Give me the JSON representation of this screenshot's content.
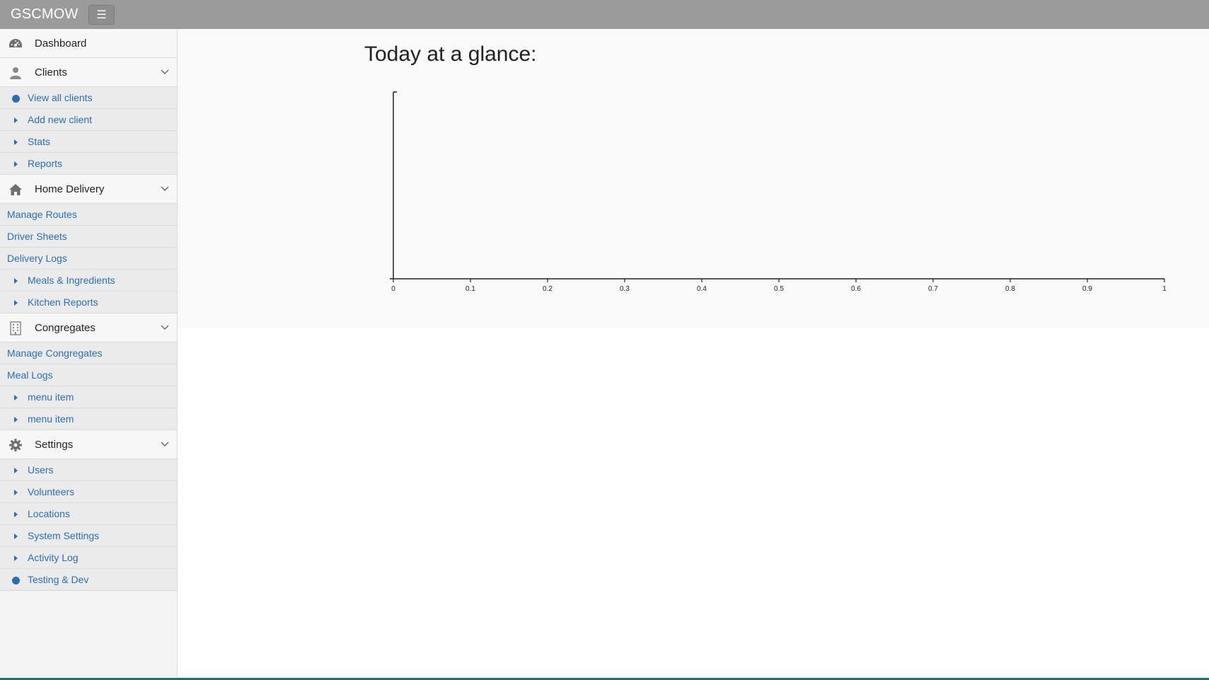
{
  "app": {
    "brand": "GSCMOW",
    "menu_toggle_icon": "hamburger-icon"
  },
  "sidebar": {
    "dashboard": {
      "label": "Dashboard",
      "icon": "dashboard-icon"
    },
    "clients": {
      "label": "Clients",
      "icon": "user-icon",
      "items": [
        {
          "label": "View all clients",
          "marker": "dot"
        },
        {
          "label": "Add new client",
          "marker": "triangle"
        },
        {
          "label": "Stats",
          "marker": "triangle"
        },
        {
          "label": "Reports",
          "marker": "triangle"
        }
      ]
    },
    "home_delivery": {
      "label": "Home Delivery",
      "icon": "home-icon",
      "items": [
        {
          "label": "Manage Routes",
          "marker": "none"
        },
        {
          "label": "Driver Sheets",
          "marker": "none"
        },
        {
          "label": "Delivery Logs",
          "marker": "none"
        },
        {
          "label": "Meals & Ingredients",
          "marker": "triangle"
        },
        {
          "label": "Kitchen Reports",
          "marker": "triangle"
        }
      ]
    },
    "congregates": {
      "label": "Congregates",
      "icon": "building-icon",
      "items": [
        {
          "label": "Manage Congregates",
          "marker": "none"
        },
        {
          "label": "Meal Logs",
          "marker": "none"
        },
        {
          "label": "menu item",
          "marker": "triangle"
        },
        {
          "label": "menu item",
          "marker": "triangle"
        }
      ]
    },
    "settings": {
      "label": "Settings",
      "icon": "gear-icon",
      "items": [
        {
          "label": "Users",
          "marker": "triangle"
        },
        {
          "label": "Volunteers",
          "marker": "triangle"
        },
        {
          "label": "Locations",
          "marker": "triangle"
        },
        {
          "label": "System Settings",
          "marker": "triangle"
        },
        {
          "label": "Activity Log",
          "marker": "triangle"
        },
        {
          "label": "Testing & Dev",
          "marker": "dot"
        }
      ]
    }
  },
  "main": {
    "title": "Today at a glance:"
  },
  "chart_data": {
    "type": "bar",
    "title": "",
    "xlabel": "",
    "ylabel": "",
    "xlim": [
      0,
      1
    ],
    "x_ticks": [
      "0",
      "0.1",
      "0.2",
      "0.3",
      "0.4",
      "0.5",
      "0.6",
      "0.7",
      "0.8",
      "0.9",
      "1"
    ],
    "series": [],
    "grid": false
  },
  "colors": {
    "link": "#2a6fb3",
    "topbar": "#9b9b9b",
    "accent_bottom": "#1f6f6a"
  }
}
